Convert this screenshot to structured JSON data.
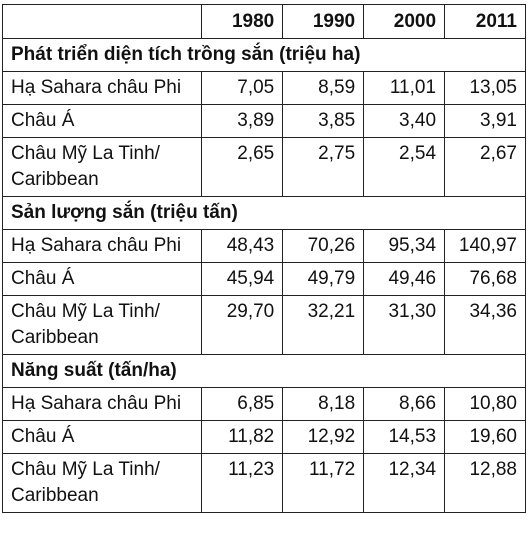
{
  "header": {
    "years": [
      "1980",
      "1990",
      "2000",
      "2011"
    ]
  },
  "sections": [
    {
      "title": "Phát triển diện tích trồng sắn (triệu ha)",
      "rows": [
        {
          "label": "Hạ Sahara châu Phi",
          "values": [
            "7,05",
            "8,59",
            "11,01",
            "13,05"
          ]
        },
        {
          "label": "Châu Á",
          "values": [
            "3,89",
            "3,85",
            "3,40",
            "3,91"
          ]
        },
        {
          "label": "Châu Mỹ La Tinh/ Caribbean",
          "values": [
            "2,65",
            "2,75",
            "2,54",
            "2,67"
          ]
        }
      ]
    },
    {
      "title": "Sản lượng sắn (triệu tấn)",
      "rows": [
        {
          "label": "Hạ Sahara châu Phi",
          "values": [
            "48,43",
            "70,26",
            "95,34",
            "140,97"
          ]
        },
        {
          "label": "Châu Á",
          "values": [
            "45,94",
            "49,79",
            "49,46",
            "76,68"
          ]
        },
        {
          "label": "Châu Mỹ La Tinh/ Caribbean",
          "values": [
            "29,70",
            "32,21",
            "31,30",
            "34,36"
          ]
        }
      ]
    },
    {
      "title": "Năng suất (tấn/ha)",
      "rows": [
        {
          "label": "Hạ Sahara châu Phi",
          "values": [
            "6,85",
            "8,18",
            "8,66",
            "10,80"
          ]
        },
        {
          "label": "Châu Á",
          "values": [
            "11,82",
            "12,92",
            "14,53",
            "19,60"
          ]
        },
        {
          "label": "Châu Mỹ La Tinh/ Caribbean",
          "values": [
            "11,23",
            "11,72",
            "12,34",
            "12,88"
          ]
        }
      ]
    }
  ]
}
